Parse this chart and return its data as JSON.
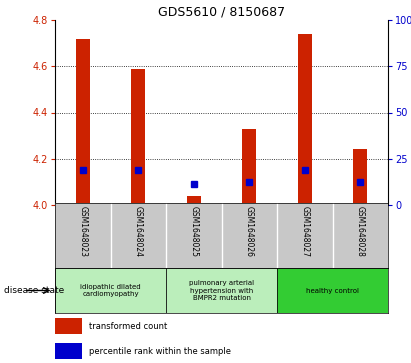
{
  "title": "GDS5610 / 8150687",
  "samples": [
    "GSM1648023",
    "GSM1648024",
    "GSM1648025",
    "GSM1648026",
    "GSM1648027",
    "GSM1648028"
  ],
  "red_top": [
    4.72,
    4.59,
    4.04,
    4.33,
    4.74,
    4.24
  ],
  "red_bottom": [
    4.0,
    4.0,
    4.0,
    4.0,
    4.0,
    4.0
  ],
  "blue_y": [
    4.15,
    4.15,
    4.09,
    4.1,
    4.15,
    4.1
  ],
  "ylim": [
    4.0,
    4.8
  ],
  "yticks_left": [
    4.0,
    4.2,
    4.4,
    4.6,
    4.8
  ],
  "yticks_right": [
    0,
    25,
    50,
    75,
    100
  ],
  "ytick_labels_right": [
    "0",
    "25",
    "50",
    "75",
    "100%"
  ],
  "bar_color": "#cc2200",
  "dot_color": "#0000cc",
  "background_color": "#ffffff",
  "plot_bg_color": "#ffffff",
  "tick_area_bg": "#c8c8c8",
  "group_defs": [
    {
      "start": 0,
      "end": 1,
      "label": "idiopathic dilated\ncardiomyopathy",
      "color": "#bbeebb"
    },
    {
      "start": 2,
      "end": 3,
      "label": "pulmonary arterial\nhypertension with\nBMPR2 mutation",
      "color": "#bbeebb"
    },
    {
      "start": 4,
      "end": 5,
      "label": "healthy control",
      "color": "#33cc33"
    }
  ],
  "legend_labels": [
    "transformed count",
    "percentile rank within the sample"
  ],
  "legend_colors": [
    "#cc2200",
    "#0000cc"
  ],
  "disease_state_label": "disease state",
  "bar_width": 0.25,
  "left_color": "#cc2200",
  "right_color": "#0000cc"
}
